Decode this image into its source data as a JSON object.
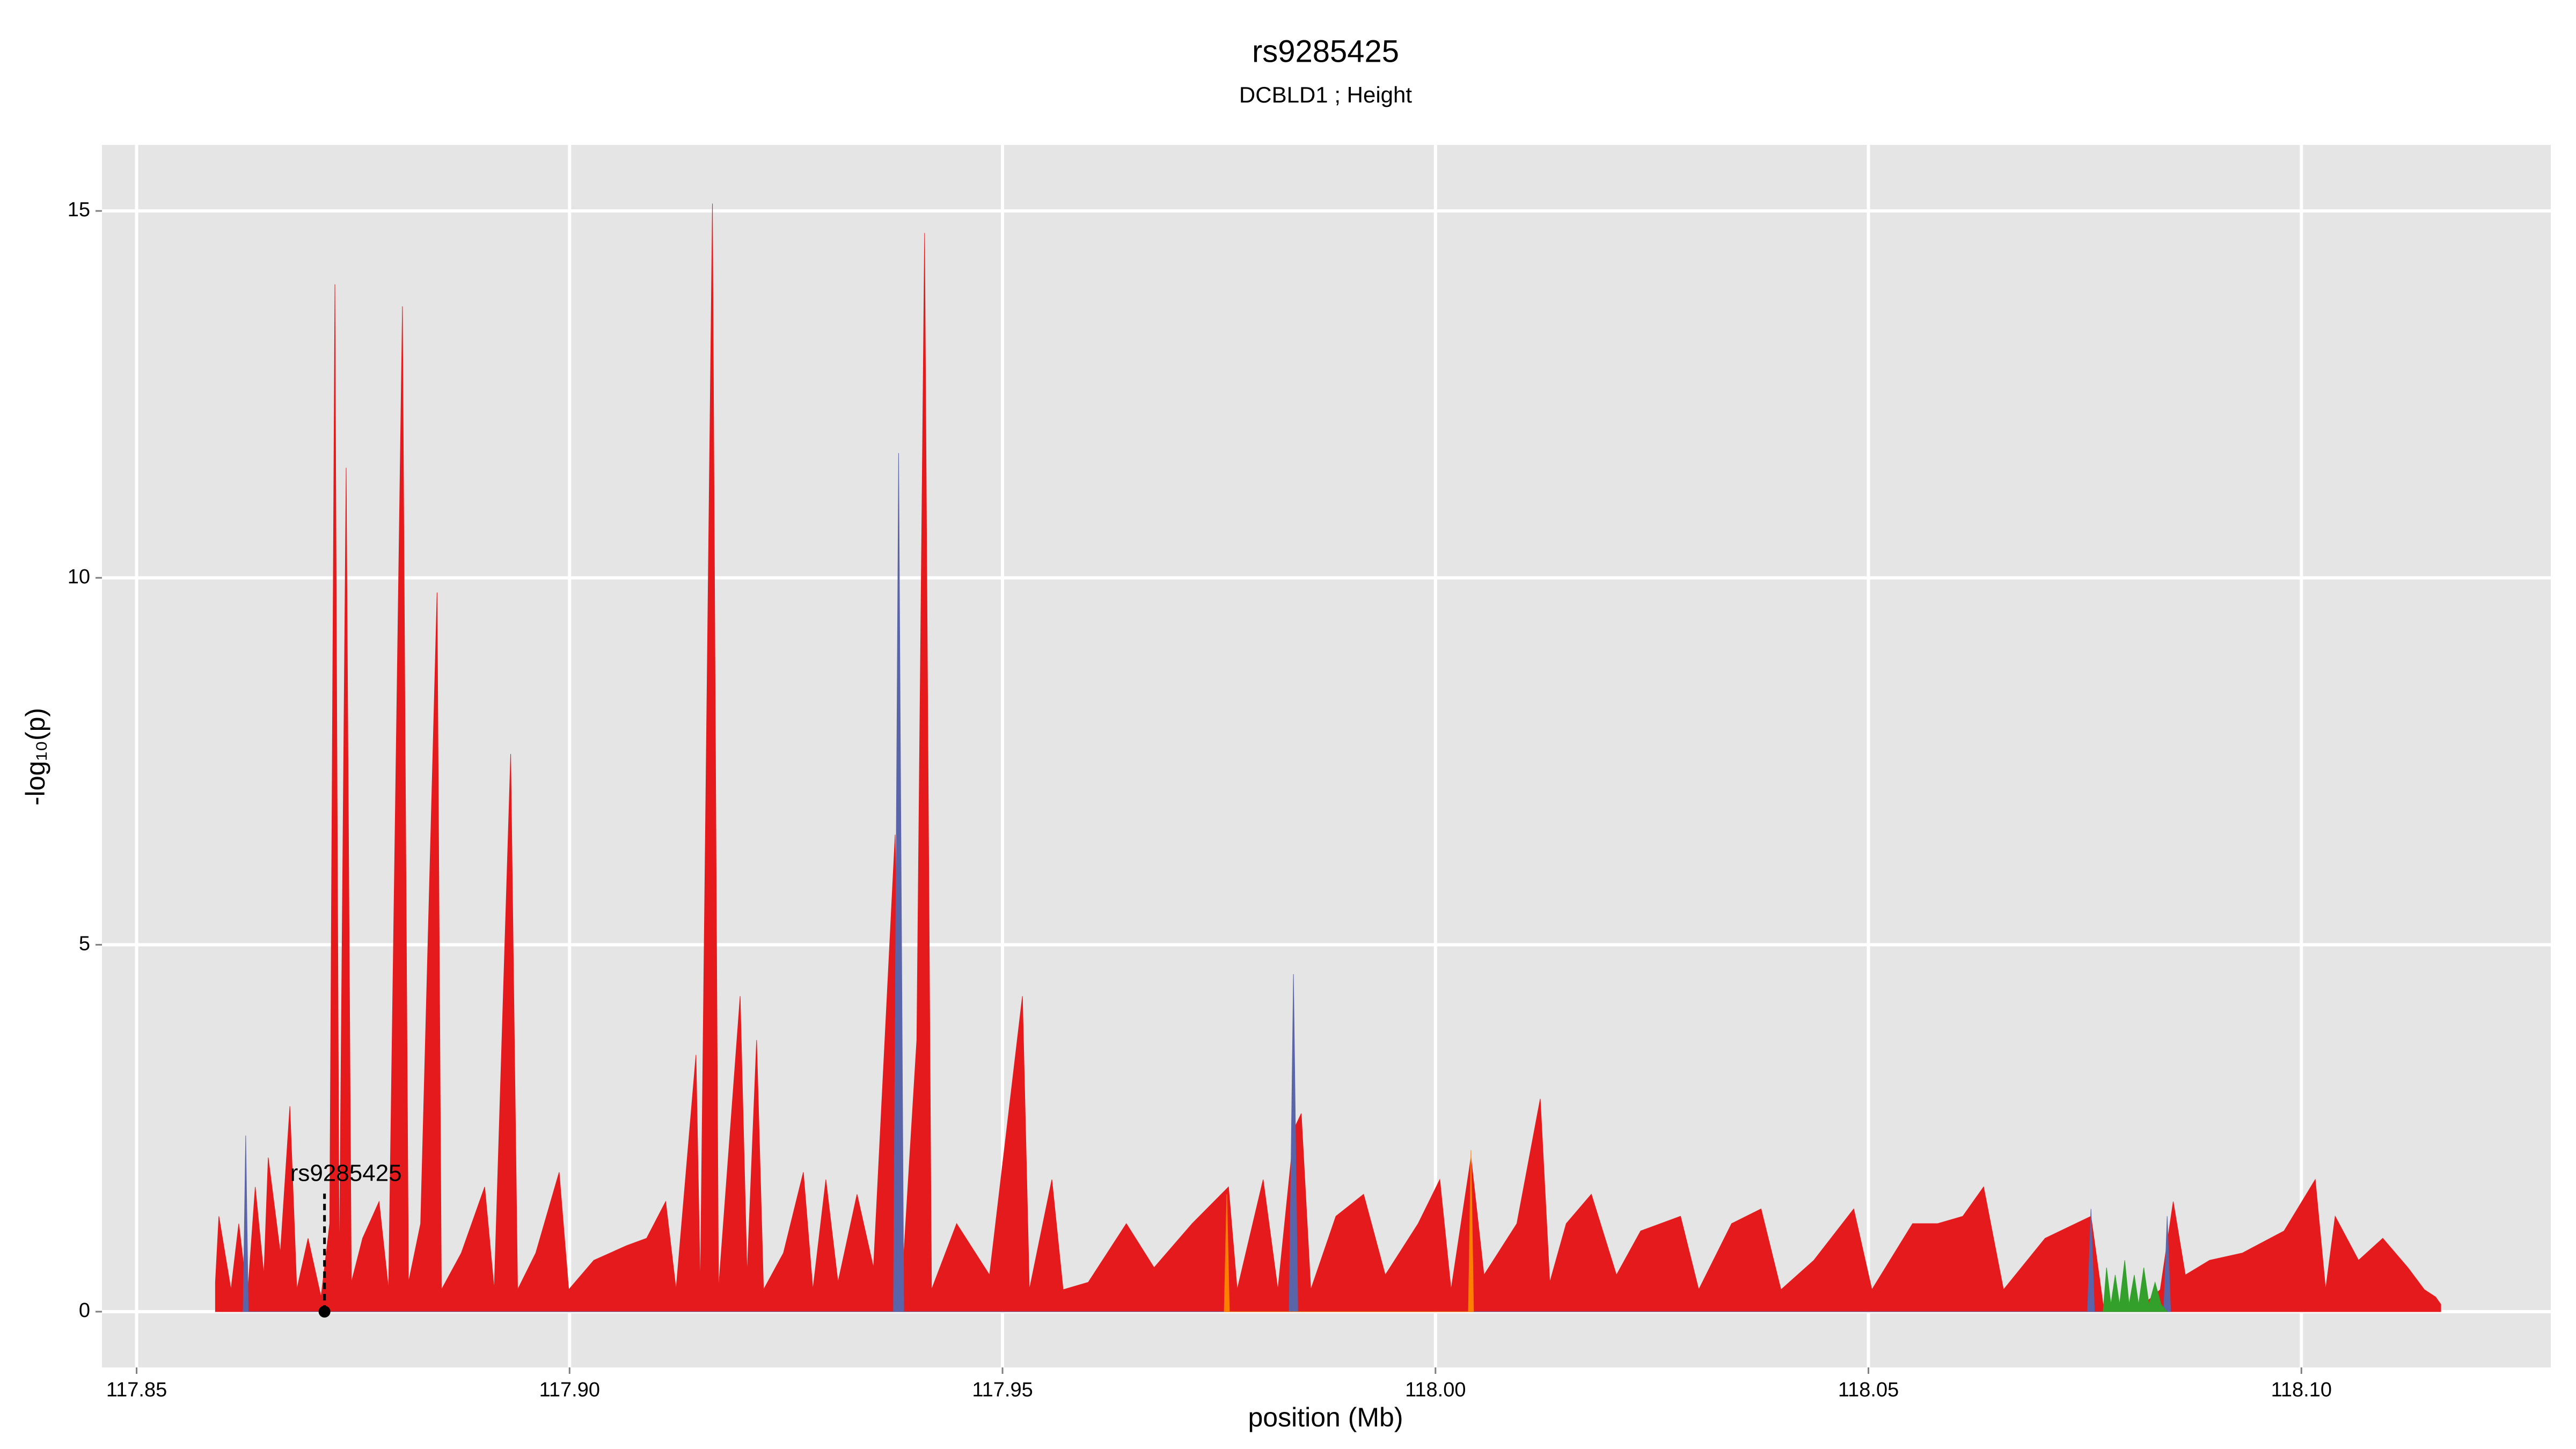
{
  "chart_data": {
    "type": "area",
    "title": "rs9285425",
    "subtitle": "DCBLD1 ; Height",
    "x_label": "position (Mb)",
    "y_label": "-log₁₀(p)",
    "xlim": [
      117.846,
      118.1288
    ],
    "ylim": [
      -0.76,
      15.9
    ],
    "xticks": [
      117.85,
      {
        "value": 117.9,
        "label": "117.90"
      },
      117.95,
      {
        "value": 118,
        "label": "118.00"
      },
      118.05,
      {
        "value": 118.1,
        "label": "118.10"
      }
    ],
    "yticks": [
      0,
      5,
      10,
      15
    ],
    "grid": true,
    "annotation": {
      "label": "rs9285425",
      "x": 117.8717,
      "y": 0
    },
    "series": [
      {
        "color": "#e41a1c",
        "x": [
          117.8591,
          117.8595,
          117.8609,
          117.8618,
          117.8628,
          117.8637,
          117.8647,
          117.8652,
          117.8666,
          117.8677,
          117.8685,
          117.8698,
          117.8713,
          117.8723,
          117.8729,
          117.8734,
          117.8742,
          117.8748,
          117.8761,
          117.878,
          117.8791,
          117.8807,
          117.8814,
          117.8828,
          117.8847,
          117.8852,
          117.8875,
          117.8902,
          117.8913,
          117.8932,
          117.894,
          117.8961,
          117.8988,
          117.8999,
          117.9028,
          117.9066,
          117.9089,
          117.9111,
          117.9123,
          117.9146,
          117.9151,
          117.9165,
          117.9172,
          117.9197,
          117.9205,
          117.9216,
          117.9224,
          117.9247,
          117.927,
          117.9281,
          117.9296,
          117.931,
          117.9332,
          117.9351,
          117.9376,
          117.9384,
          117.9401,
          117.941,
          117.9418,
          117.9447,
          117.9485,
          117.9523,
          117.9531,
          117.9557,
          117.957,
          117.9599,
          117.9643,
          117.9675,
          117.9719,
          117.9761,
          117.9771,
          117.9801,
          117.9818,
          117.9837,
          117.9845,
          117.9856,
          117.9885,
          117.9917,
          117.9942,
          117.998,
          118.0005,
          118.0018,
          118.0041,
          118.0056,
          118.0094,
          118.0121,
          118.0132,
          118.0151,
          118.018,
          118.0209,
          118.0237,
          118.0283,
          118.0304,
          118.0342,
          118.0376,
          118.0399,
          118.0437,
          118.0483,
          118.0504,
          118.0551,
          118.058,
          118.0609,
          118.0633,
          118.0656,
          118.0704,
          118.0757,
          118.0771,
          118.0818,
          118.0837,
          118.0852,
          118.0866,
          118.0894,
          118.0932,
          118.098,
          118.1016,
          118.1028,
          118.1039,
          118.1066,
          118.1094,
          118.1123,
          118.1142,
          118.1155,
          118.1161
        ],
        "values": [
          0.4,
          1.3,
          0.3,
          1.2,
          0.2,
          1.7,
          0.5,
          2.1,
          0.8,
          2.8,
          0.3,
          1.0,
          0.2,
          1.2,
          14.0,
          0.5,
          11.5,
          0.4,
          1.0,
          1.5,
          0.3,
          13.7,
          0.4,
          1.2,
          9.8,
          0.3,
          0.8,
          1.7,
          0.3,
          7.6,
          0.3,
          0.8,
          1.9,
          0.3,
          0.7,
          0.9,
          1.0,
          1.5,
          0.3,
          3.5,
          0.3,
          15.1,
          0.3,
          4.3,
          0.5,
          3.7,
          0.3,
          0.8,
          1.9,
          0.3,
          1.8,
          0.4,
          1.6,
          0.6,
          6.5,
          0.4,
          3.7,
          14.7,
          0.3,
          1.2,
          0.5,
          4.3,
          0.3,
          1.8,
          0.3,
          0.4,
          1.2,
          0.6,
          1.2,
          1.7,
          0.3,
          1.8,
          0.3,
          2.5,
          2.7,
          0.3,
          1.3,
          1.6,
          0.5,
          1.2,
          1.8,
          0.3,
          2.1,
          0.5,
          1.2,
          2.9,
          0.4,
          1.2,
          1.6,
          0.5,
          1.1,
          1.3,
          0.3,
          1.2,
          1.4,
          0.3,
          0.7,
          1.4,
          0.3,
          1.2,
          1.2,
          1.3,
          1.7,
          0.3,
          1.0,
          1.3,
          0.1,
          0.1,
          0.3,
          1.5,
          0.5,
          0.7,
          0.8,
          1.1,
          1.8,
          0.3,
          1.3,
          0.7,
          1.0,
          0.6,
          0.3,
          0.2,
          0.1
        ]
      },
      {
        "color": "#5a64a8",
        "x": [
          117.8623,
          117.8626,
          117.8629,
          117.9374,
          117.938,
          117.9386,
          117.9831,
          117.9836,
          117.9841,
          118.0753,
          118.0757,
          118.0761,
          118.0841,
          118.0845,
          118.0849
        ],
        "values": [
          0,
          2.4,
          0,
          0,
          11.7,
          0,
          0,
          4.6,
          0,
          0,
          1.4,
          0,
          0,
          1.3,
          0
        ]
      },
      {
        "color": "#ff7f00",
        "x": [
          117.9756,
          117.9759,
          117.9762,
          118.0038,
          118.0041,
          118.0044
        ],
        "values": [
          0,
          1.6,
          0,
          0,
          2.2,
          0
        ]
      },
      {
        "color": "#33a02c",
        "x": [
          118.0771,
          118.0775,
          118.078,
          118.0785,
          118.079,
          118.0796,
          118.0801,
          118.0807,
          118.0812,
          118.0818,
          118.0824,
          118.0831,
          118.0838,
          118.0845
        ],
        "values": [
          0,
          0.6,
          0.1,
          0.5,
          0.1,
          0.7,
          0.1,
          0.5,
          0.1,
          0.6,
          0.1,
          0.4,
          0.1,
          0
        ]
      }
    ]
  }
}
